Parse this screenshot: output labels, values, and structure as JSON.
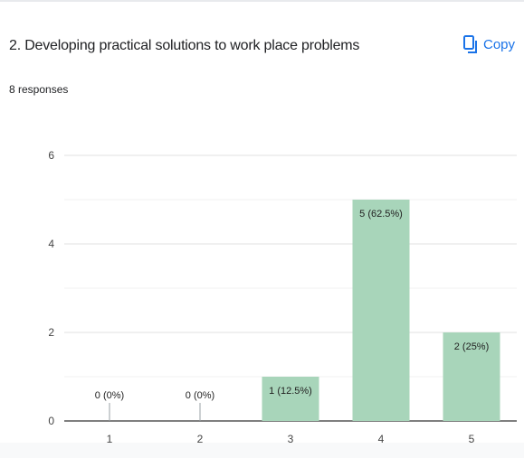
{
  "question": {
    "title": "2. Developing practical solutions to work place problems",
    "responses": "8 responses",
    "copy_label": "Copy"
  },
  "icons": {
    "copy": "copy-icon"
  },
  "colors": {
    "bar": "#a8d5ba",
    "accent": "#1a73e8"
  },
  "chart_data": {
    "type": "bar",
    "categories": [
      "1",
      "2",
      "3",
      "4",
      "5"
    ],
    "values": [
      0,
      0,
      1,
      5,
      2
    ],
    "data_labels": [
      "0 (0%)",
      "0 (0%)",
      "1 (12.5%)",
      "5 (62.5%)",
      "2 (25%)"
    ],
    "yticks": [
      "0",
      "2",
      "4",
      "6"
    ],
    "ylim": [
      0,
      6
    ],
    "grid": true,
    "title": "",
    "xlabel": "",
    "ylabel": ""
  }
}
